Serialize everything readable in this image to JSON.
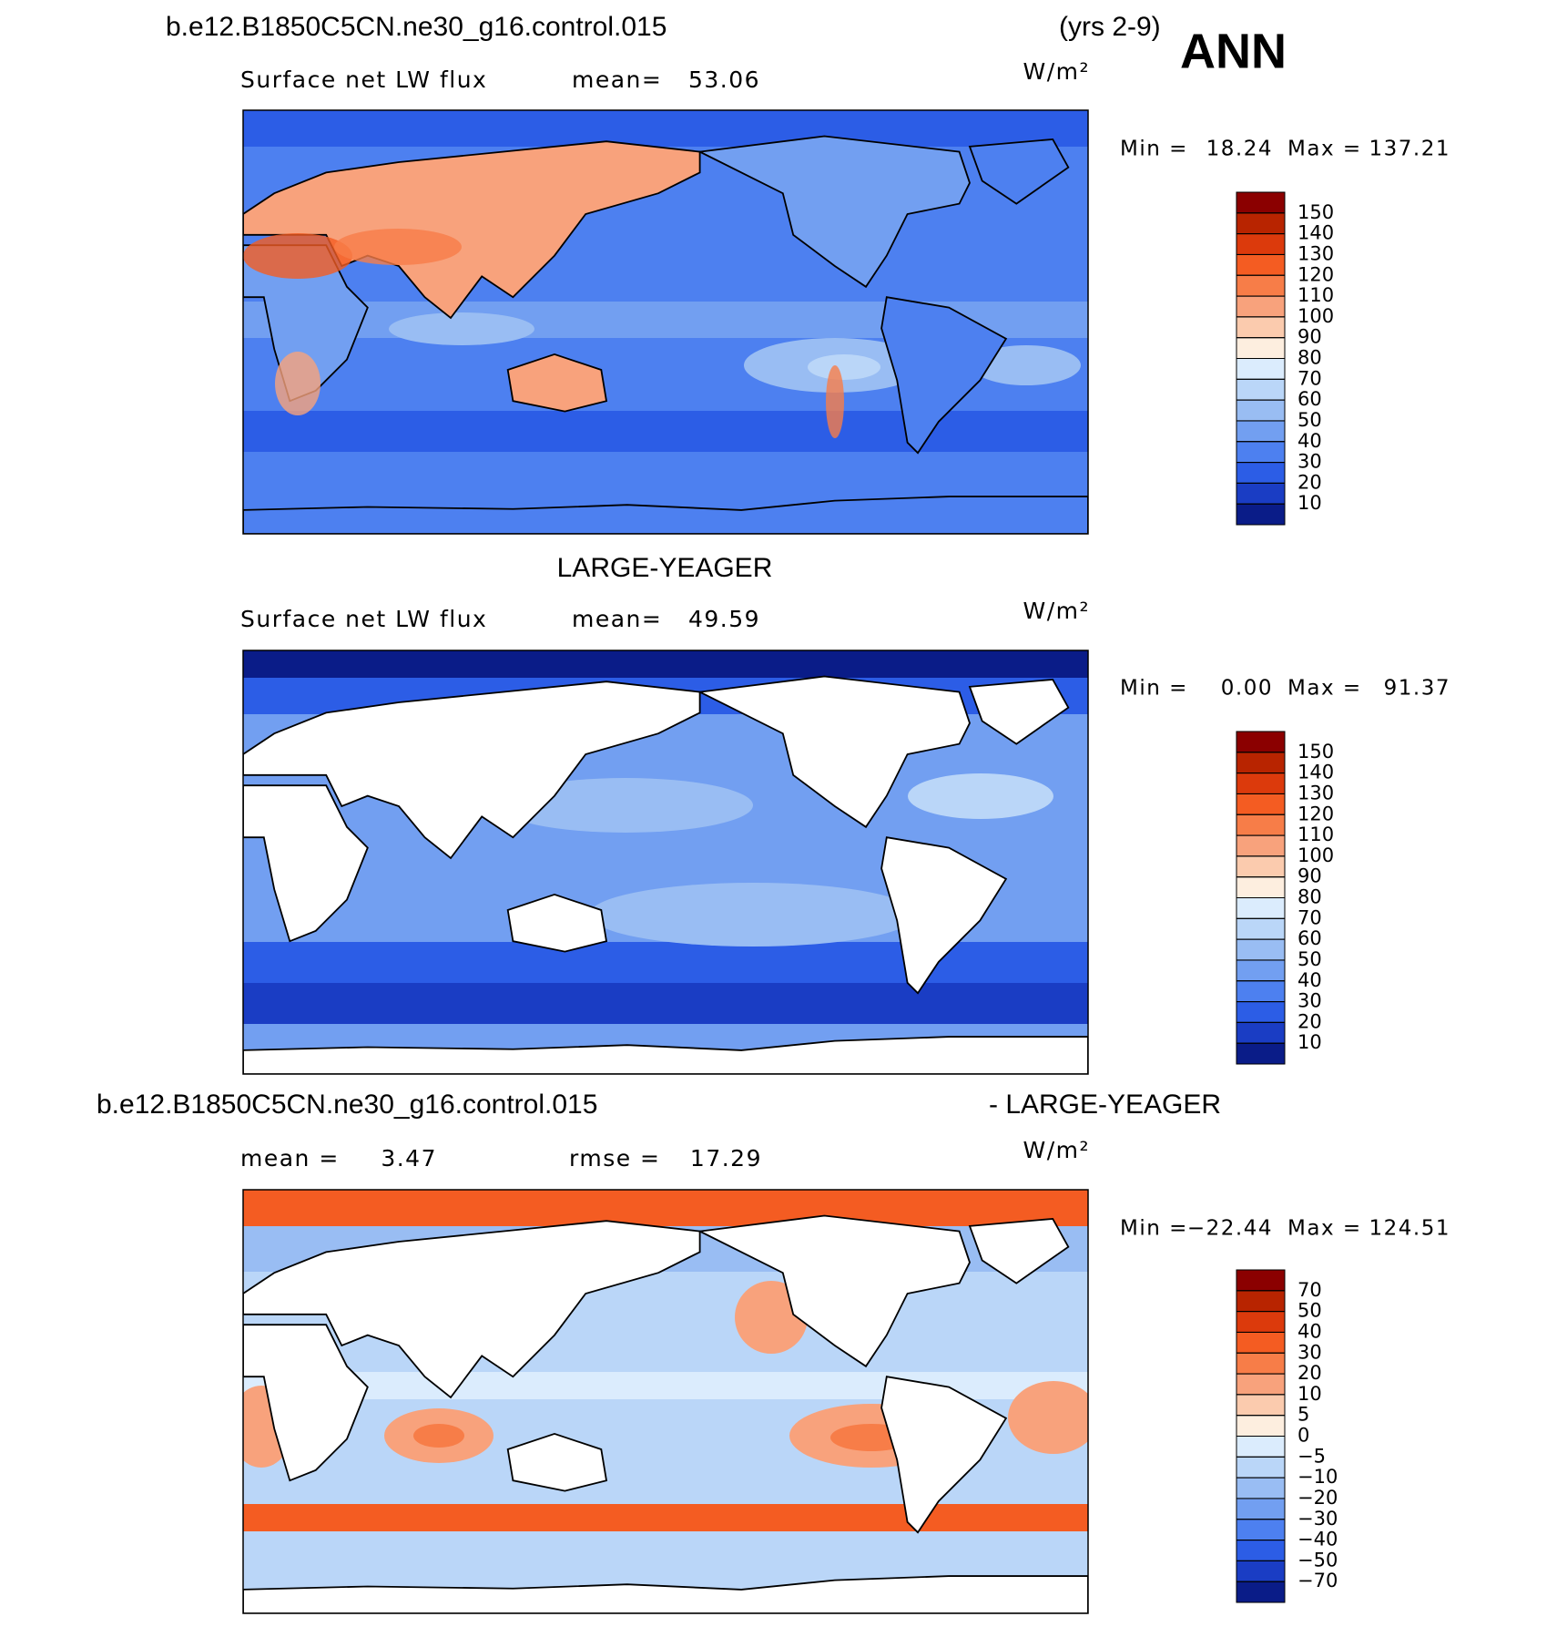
{
  "chart_data": [
    {
      "type": "map",
      "title": "b.e12.B1850C5CN.ne30_g16.control.015",
      "title_right": "(yrs 2-9)",
      "season": "ANN",
      "subtitle": "Surface net LW flux",
      "stat_label": "mean=",
      "stat": 53.06,
      "units": "W/m²",
      "min_label": "Min =",
      "min": 18.24,
      "max_label": "Max =",
      "max": 137.21,
      "colorbar": {
        "ticks": [
          150,
          140,
          130,
          120,
          110,
          100,
          90,
          80,
          70,
          60,
          50,
          40,
          30,
          20,
          10
        ],
        "colors": [
          "#8b0000",
          "#b82400",
          "#dc3a0c",
          "#f45c22",
          "#f77d48",
          "#f8a27c",
          "#fbcbae",
          "#fdeedf",
          "#dbecfd",
          "#bad6f8",
          "#99bdf3",
          "#729ff1",
          "#4d80f0",
          "#2c5de6",
          "#1a3dc4",
          "#0a1c88"
        ]
      }
    },
    {
      "type": "map",
      "title": "LARGE-YEAGER",
      "subtitle": "Surface net LW flux",
      "stat_label": "mean=",
      "stat": 49.59,
      "units": "W/m²",
      "min_label": "Min =",
      "min": {
        "value": 0,
        "label": "0.00"
      },
      "max_label": "Max =",
      "max": 91.37,
      "colorbar": {
        "ticks": [
          150,
          140,
          130,
          120,
          110,
          100,
          90,
          80,
          70,
          60,
          50,
          40,
          30,
          20,
          10
        ],
        "colors": [
          "#8b0000",
          "#b82400",
          "#dc3a0c",
          "#f45c22",
          "#f77d48",
          "#f8a27c",
          "#fbcbae",
          "#fdeedf",
          "#dbecfd",
          "#bad6f8",
          "#99bdf3",
          "#729ff1",
          "#4d80f0",
          "#2c5de6",
          "#1a3dc4",
          "#0a1c88"
        ]
      }
    },
    {
      "type": "map",
      "title": "b.e12.B1850C5CN.ne30_g16.control.015",
      "title_right": "- LARGE-YEAGER",
      "stat_label": "mean =",
      "stat": 3.47,
      "stat2_label": "rmse =",
      "stat2": 17.29,
      "units": "W/m²",
      "min_label": "Min =",
      "min": {
        "value": -22.44,
        "label": "−22.44"
      },
      "max_label": "Max =",
      "max": 124.51,
      "colorbar": {
        "ticks": [
          70,
          50,
          40,
          30,
          20,
          10,
          5,
          0,
          {
            "value": -5,
            "label": "−5"
          },
          {
            "value": -10,
            "label": "−10"
          },
          {
            "value": -20,
            "label": "−20"
          },
          {
            "value": -30,
            "label": "−30"
          },
          {
            "value": -40,
            "label": "−40"
          },
          {
            "value": -50,
            "label": "−50"
          },
          {
            "value": -70,
            "label": "−70"
          }
        ],
        "colors": [
          "#8b0000",
          "#b82400",
          "#dc3a0c",
          "#f45c22",
          "#f77d48",
          "#f8a27c",
          "#fbcbae",
          "#fdeedf",
          "#dbecfd",
          "#bad6f8",
          "#99bdf3",
          "#729ff1",
          "#4d80f0",
          "#2c5de6",
          "#1a3dc4",
          "#0a1c88"
        ]
      }
    }
  ]
}
